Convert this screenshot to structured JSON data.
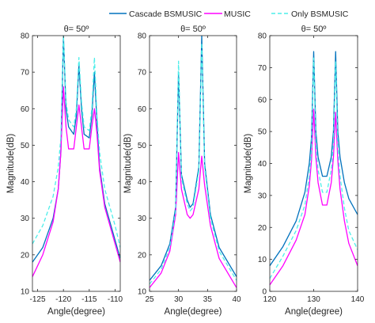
{
  "legend": {
    "placement": "top",
    "entries": [
      {
        "name": "Cascade BSMUSIC",
        "color": "#0072BD",
        "dash": "solid"
      },
      {
        "name": "MUSIC",
        "color": "#FF00FF",
        "dash": "solid"
      },
      {
        "name": "Only BSMUSIC",
        "color": "#4DEEEA",
        "dash": "dashed"
      }
    ]
  },
  "chart_data": [
    {
      "type": "line",
      "title": "θ= 50º",
      "xlabel": "Angle(degree)",
      "ylabel": "Magnitude(dB)",
      "xlim": [
        -126,
        -109
      ],
      "ylim": [
        10,
        80
      ],
      "xticks": [
        -125,
        -120,
        -115,
        -110
      ],
      "yticks": [
        10,
        20,
        30,
        40,
        50,
        60,
        70,
        80
      ],
      "grid": false,
      "series": [
        {
          "name": "Cascade BSMUSIC",
          "x": [
            -126,
            -124,
            -122,
            -121,
            -120.5,
            -120,
            -119.5,
            -119,
            -118,
            -117.5,
            -117,
            -116.5,
            -116,
            -115,
            -114.5,
            -114,
            -113.5,
            -113,
            -112,
            -110,
            -109
          ],
          "y": [
            18,
            22,
            30,
            38,
            48,
            80,
            60,
            55,
            53,
            58,
            72,
            60,
            53,
            52,
            58,
            70,
            56,
            44,
            34,
            24,
            19
          ]
        },
        {
          "name": "MUSIC",
          "x": [
            -126,
            -124,
            -122,
            -121,
            -120.5,
            -120,
            -119.5,
            -119,
            -118,
            -117.5,
            -117,
            -116.5,
            -116,
            -115,
            -114.5,
            -114,
            -113.5,
            -113,
            -112,
            -110,
            -109
          ],
          "y": [
            14,
            20,
            29,
            38,
            48,
            66,
            55,
            49,
            49,
            55,
            61,
            55,
            49,
            49,
            55,
            60,
            53,
            43,
            33,
            23,
            18
          ]
        },
        {
          "name": "Only BSMUSIC",
          "x": [
            -126,
            -124,
            -122,
            -121,
            -120.5,
            -120,
            -119.5,
            -119,
            -118,
            -117.5,
            -117,
            -116.5,
            -116,
            -115,
            -114.5,
            -114,
            -113.5,
            -113,
            -112,
            -110,
            -109
          ],
          "y": [
            23,
            28,
            36,
            44,
            52,
            80,
            62,
            57,
            55,
            60,
            74,
            62,
            55,
            54,
            60,
            74,
            58,
            48,
            38,
            28,
            22
          ]
        }
      ]
    },
    {
      "type": "line",
      "title": "θ= 50º",
      "xlabel": "Angle(degree)",
      "ylabel": "Magnitude(dB)",
      "xlim": [
        25,
        40
      ],
      "ylim": [
        10,
        80
      ],
      "xticks": [
        25,
        30,
        35,
        40
      ],
      "yticks": [
        10,
        20,
        30,
        40,
        50,
        60,
        70,
        80
      ],
      "grid": false,
      "series": [
        {
          "name": "Cascade BSMUSIC",
          "x": [
            25,
            27,
            28.5,
            29.5,
            30,
            30.5,
            31.5,
            32,
            32.5,
            33.5,
            34,
            34.5,
            35.5,
            37,
            40
          ],
          "y": [
            13,
            17,
            23,
            33,
            70,
            42,
            35,
            33,
            34,
            44,
            80,
            45,
            31,
            22,
            14
          ]
        },
        {
          "name": "MUSIC",
          "x": [
            25,
            27,
            28.5,
            29.5,
            30,
            30.5,
            31.5,
            32,
            32.5,
            33.5,
            34,
            34.5,
            35.5,
            37,
            40
          ],
          "y": [
            11,
            15,
            21,
            31,
            48,
            38,
            31,
            30,
            31,
            38,
            47,
            39,
            28,
            19,
            11
          ]
        },
        {
          "name": "Only BSMUSIC",
          "x": [
            25,
            27,
            28.5,
            29.5,
            30,
            30.5,
            31.5,
            32,
            32.5,
            33.5,
            34,
            34.5,
            35.5,
            37,
            40
          ],
          "y": [
            12,
            16,
            22,
            32,
            73,
            41,
            34,
            32,
            33,
            43,
            78,
            44,
            30,
            21,
            13
          ]
        }
      ]
    },
    {
      "type": "line",
      "title": "θ= 50º",
      "xlabel": "Angle(degree)",
      "ylabel": "Magnitude(dB)",
      "xlim": [
        120,
        140
      ],
      "ylim": [
        0,
        80
      ],
      "xticks": [
        120,
        130,
        140
      ],
      "yticks": [
        0,
        10,
        20,
        30,
        40,
        50,
        60,
        70,
        80
      ],
      "grid": false,
      "series": [
        {
          "name": "Cascade BSMUSIC",
          "x": [
            120,
            123,
            126,
            128,
            129,
            129.5,
            130,
            130.5,
            131,
            132,
            133,
            134,
            134.5,
            135,
            135.5,
            136,
            137,
            138,
            140
          ],
          "y": [
            8,
            14,
            22,
            31,
            40,
            48,
            75,
            50,
            42,
            36,
            36,
            42,
            50,
            75,
            50,
            42,
            34,
            29,
            24
          ]
        },
        {
          "name": "MUSIC",
          "x": [
            120,
            123,
            126,
            128,
            129,
            129.5,
            130,
            130.5,
            131,
            132,
            133,
            134,
            134.5,
            135,
            135.5,
            136,
            137,
            138,
            140
          ],
          "y": [
            2,
            8,
            16,
            24,
            33,
            41,
            57,
            42,
            34,
            27,
            27,
            34,
            42,
            56,
            41,
            32,
            22,
            15,
            8
          ]
        },
        {
          "name": "Only BSMUSIC",
          "x": [
            120,
            123,
            126,
            128,
            129,
            129.5,
            130,
            130.5,
            131,
            132,
            133,
            134,
            134.5,
            135,
            135.5,
            136,
            137,
            138,
            140
          ],
          "y": [
            4,
            11,
            19,
            27,
            36,
            44,
            73,
            46,
            38,
            31,
            31,
            38,
            46,
            72,
            45,
            36,
            26,
            19,
            13
          ]
        }
      ]
    }
  ]
}
